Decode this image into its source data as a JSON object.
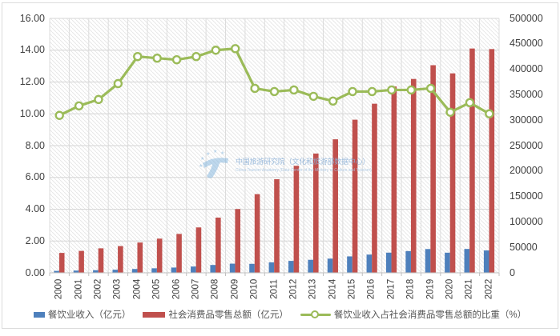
{
  "chart_data": {
    "type": "combo-bar-line",
    "categories": [
      "2000",
      "2001",
      "2002",
      "2003",
      "2004",
      "2005",
      "2006",
      "2007",
      "2008",
      "2009",
      "2010",
      "2011",
      "2012",
      "2013",
      "2014",
      "2015",
      "2016",
      "2017",
      "2018",
      "2019",
      "2020",
      "2021",
      "2022"
    ],
    "series": [
      {
        "name": "餐饮业收入（亿元）",
        "type": "bar",
        "axis": "right",
        "color": "#4E80BC",
        "values": [
          3753,
          4369,
          5092,
          6066,
          7486,
          8887,
          10345,
          12352,
          15404,
          17998,
          17648,
          20543,
          23448,
          25569,
          27860,
          32310,
          35799,
          39644,
          42716,
          46721,
          39527,
          46895,
          43941
        ]
      },
      {
        "name": "社会消费品零售总额（亿元）",
        "type": "bar",
        "axis": "right",
        "color": "#C0504D",
        "values": [
          39106,
          43055,
          48136,
          52516,
          59501,
          67177,
          76410,
          89210,
          108488,
          125343,
          154554,
          183919,
          210307,
          234380,
          262394,
          300931,
          332316,
          366262,
          380987,
          408017,
          391981,
          440823,
          439733
        ]
      },
      {
        "name": "餐饮业收入占社会消费品零售总额的比重（%）",
        "type": "line",
        "axis": "left",
        "color": "#9BBB59",
        "values": [
          9.9,
          10.5,
          10.9,
          11.9,
          13.6,
          13.5,
          13.4,
          13.6,
          14.0,
          14.1,
          11.6,
          11.4,
          11.5,
          11.1,
          10.8,
          11.4,
          11.4,
          11.5,
          11.5,
          11.6,
          10.1,
          10.7,
          10.0
        ]
      }
    ],
    "left_axis": {
      "min": 0,
      "max": 16,
      "step": 2,
      "tick_labels": [
        "16.00",
        "14.00",
        "12.00",
        "10.00",
        "8.00",
        "6.00",
        "4.00",
        "2.00",
        "0.00"
      ]
    },
    "right_axis": {
      "min": 0,
      "max": 500000,
      "step": 50000,
      "tick_labels": [
        "500000",
        "450000",
        "400000",
        "350000",
        "300000",
        "250000",
        "200000",
        "150000",
        "100000",
        "50000",
        "0"
      ]
    },
    "grid": true,
    "legend_position": "bottom"
  },
  "legend": {
    "items": [
      {
        "label": "餐饮业收入（亿元）",
        "marker": "square",
        "color": "#4E80BC"
      },
      {
        "label": "社会消费品零售总额（亿元）",
        "marker": "square",
        "color": "#C0504D"
      },
      {
        "label": "餐饮业收入占社会消费品零售总额的比重（%）",
        "marker": "line-circle",
        "color": "#9BBB59"
      }
    ]
  },
  "watermark": {
    "logo": "china-tourism-academy-logo",
    "title": "中国旅游研究院（文化和旅游部数据中心）",
    "subtitle": "China Tourism Academy (Data Center of the Ministry of Culture and Tourism)",
    "color": "#8CB1D8"
  }
}
